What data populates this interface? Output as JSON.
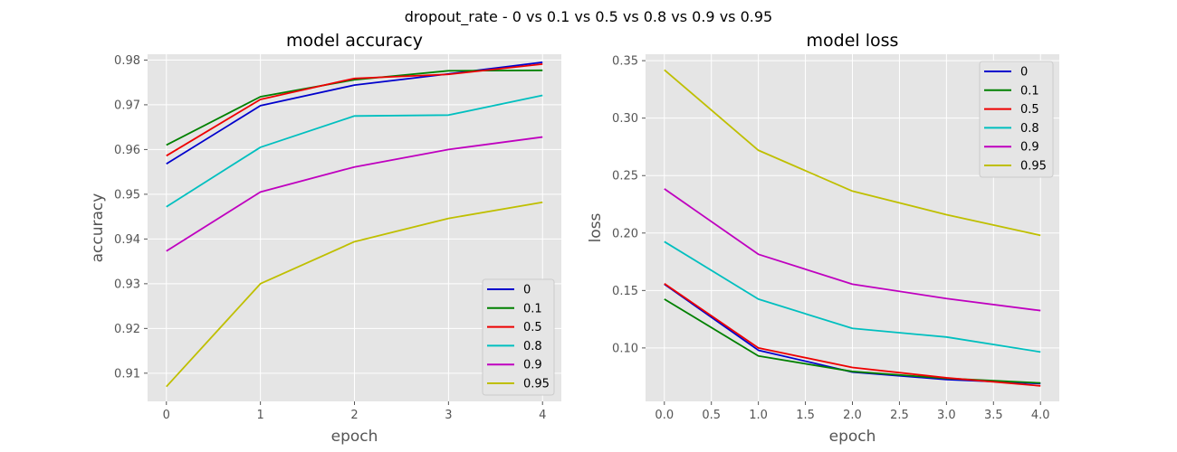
{
  "figure": {
    "suptitle": "dropout_rate - 0 vs 0.1 vs 0.5 vs 0.8 vs 0.9 vs 0.95"
  },
  "chart_data": [
    {
      "type": "line",
      "title": "model accuracy",
      "xlabel": "epoch",
      "ylabel": "accuracy",
      "x": [
        0,
        1,
        2,
        3,
        4
      ],
      "xticks": [
        "0",
        "1",
        "2",
        "3",
        "4"
      ],
      "xlim": [
        -0.2,
        4.2
      ],
      "yticks": [
        "0.91",
        "0.92",
        "0.93",
        "0.94",
        "0.95",
        "0.96",
        "0.97",
        "0.98"
      ],
      "ylim": [
        0.9037,
        0.9813
      ],
      "grid": true,
      "legend_position": "lower-right",
      "series": [
        {
          "name": "0",
          "color": "#0000cc",
          "values": [
            0.9568,
            0.9698,
            0.9744,
            0.9769,
            0.9795
          ]
        },
        {
          "name": "0.1",
          "color": "#008000",
          "values": [
            0.961,
            0.9718,
            0.9756,
            0.9776,
            0.9777
          ]
        },
        {
          "name": "0.5",
          "color": "#ee0000",
          "values": [
            0.9586,
            0.9712,
            0.9759,
            0.9768,
            0.9791
          ]
        },
        {
          "name": "0.8",
          "color": "#00bfbf",
          "values": [
            0.9472,
            0.9605,
            0.9675,
            0.9677,
            0.9721
          ]
        },
        {
          "name": "0.9",
          "color": "#bf00bf",
          "values": [
            0.9373,
            0.9505,
            0.9561,
            0.96,
            0.9628
          ]
        },
        {
          "name": "0.95",
          "color": "#bfbf00",
          "values": [
            0.907,
            0.93,
            0.9394,
            0.9446,
            0.9482
          ]
        }
      ]
    },
    {
      "type": "line",
      "title": "model loss",
      "xlabel": "epoch",
      "ylabel": "loss",
      "x": [
        0,
        1,
        2,
        3,
        4
      ],
      "xticks": [
        "0.0",
        "0.5",
        "1.0",
        "1.5",
        "2.0",
        "2.5",
        "3.0",
        "3.5",
        "4.0"
      ],
      "xlim": [
        -0.2,
        4.2
      ],
      "yticks": [
        "0.10",
        "0.15",
        "0.20",
        "0.25",
        "0.30",
        "0.35"
      ],
      "ylim": [
        0.0535,
        0.3556
      ],
      "grid": true,
      "legend_position": "upper-right",
      "series": [
        {
          "name": "0",
          "color": "#0000cc",
          "values": [
            0.1555,
            0.098,
            0.079,
            0.0725,
            0.069
          ]
        },
        {
          "name": "0.1",
          "color": "#008000",
          "values": [
            0.1425,
            0.093,
            0.0795,
            0.0735,
            0.0695
          ]
        },
        {
          "name": "0.5",
          "color": "#ee0000",
          "values": [
            0.156,
            0.1,
            0.083,
            0.074,
            0.067
          ]
        },
        {
          "name": "0.8",
          "color": "#00bfbf",
          "values": [
            0.1925,
            0.1425,
            0.117,
            0.1095,
            0.0965
          ]
        },
        {
          "name": "0.9",
          "color": "#bf00bf",
          "values": [
            0.2385,
            0.1815,
            0.1555,
            0.143,
            0.1325
          ]
        },
        {
          "name": "0.95",
          "color": "#bfbf00",
          "values": [
            0.342,
            0.272,
            0.2365,
            0.216,
            0.198
          ]
        }
      ]
    }
  ]
}
